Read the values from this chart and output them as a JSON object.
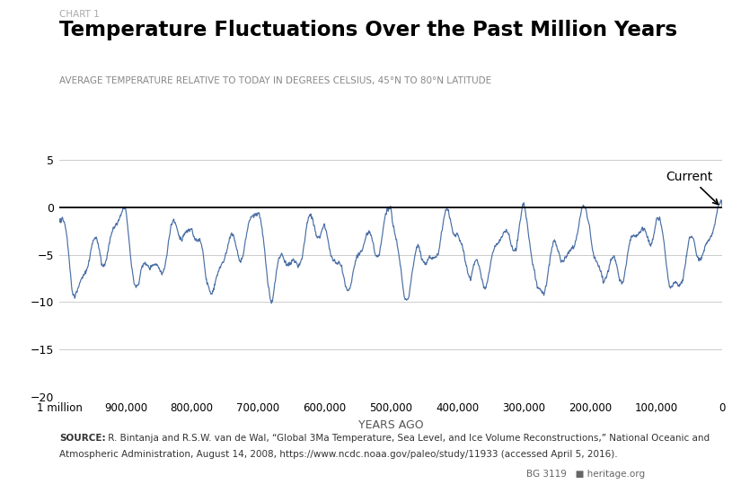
{
  "chart_label": "CHART 1",
  "title": "Temperature Fluctuations Over the Past Million Years",
  "subtitle": "AVERAGE TEMPERATURE RELATIVE TO TODAY IN DEGREES CELSIUS, 45°N TO 80°N LATITUDE",
  "xlabel": "YEARS AGO",
  "ylabel": "",
  "xlim": [
    1000000,
    0
  ],
  "ylim": [
    -20,
    6
  ],
  "yticks": [
    5,
    0,
    -5,
    -10,
    -15,
    -20
  ],
  "xtick_labels": [
    "1 million",
    "900,000",
    "800,000",
    "700,000",
    "600,000",
    "500,000",
    "400,000",
    "300,000",
    "200,000",
    "100,000",
    "0"
  ],
  "xtick_values": [
    1000000,
    900000,
    800000,
    700000,
    600000,
    500000,
    400000,
    300000,
    200000,
    100000,
    0
  ],
  "line_color": "#4a6fa5",
  "bg_color": "#ffffff",
  "annotation_text": "Current",
  "source_bold": "SOURCE:",
  "source_rest": " R. Bintanja and R.S.W. van de Wal, “Global 3Ma Temperature, Sea Level, and Ice Volume Reconstructions,” National Oceanic and Atmospheric Administration, August 14, 2008, https://www.ncdc.noaa.gov/paleo/study/11933 (accessed April 5, 2016).",
  "bg_label": "BG 3119",
  "heritage_label": "heritage.org",
  "zero_line_color": "#000000",
  "grid_color": "#cccccc",
  "chart_label_color": "#aaaaaa",
  "subtitle_color": "#888888",
  "source_color": "#333333"
}
